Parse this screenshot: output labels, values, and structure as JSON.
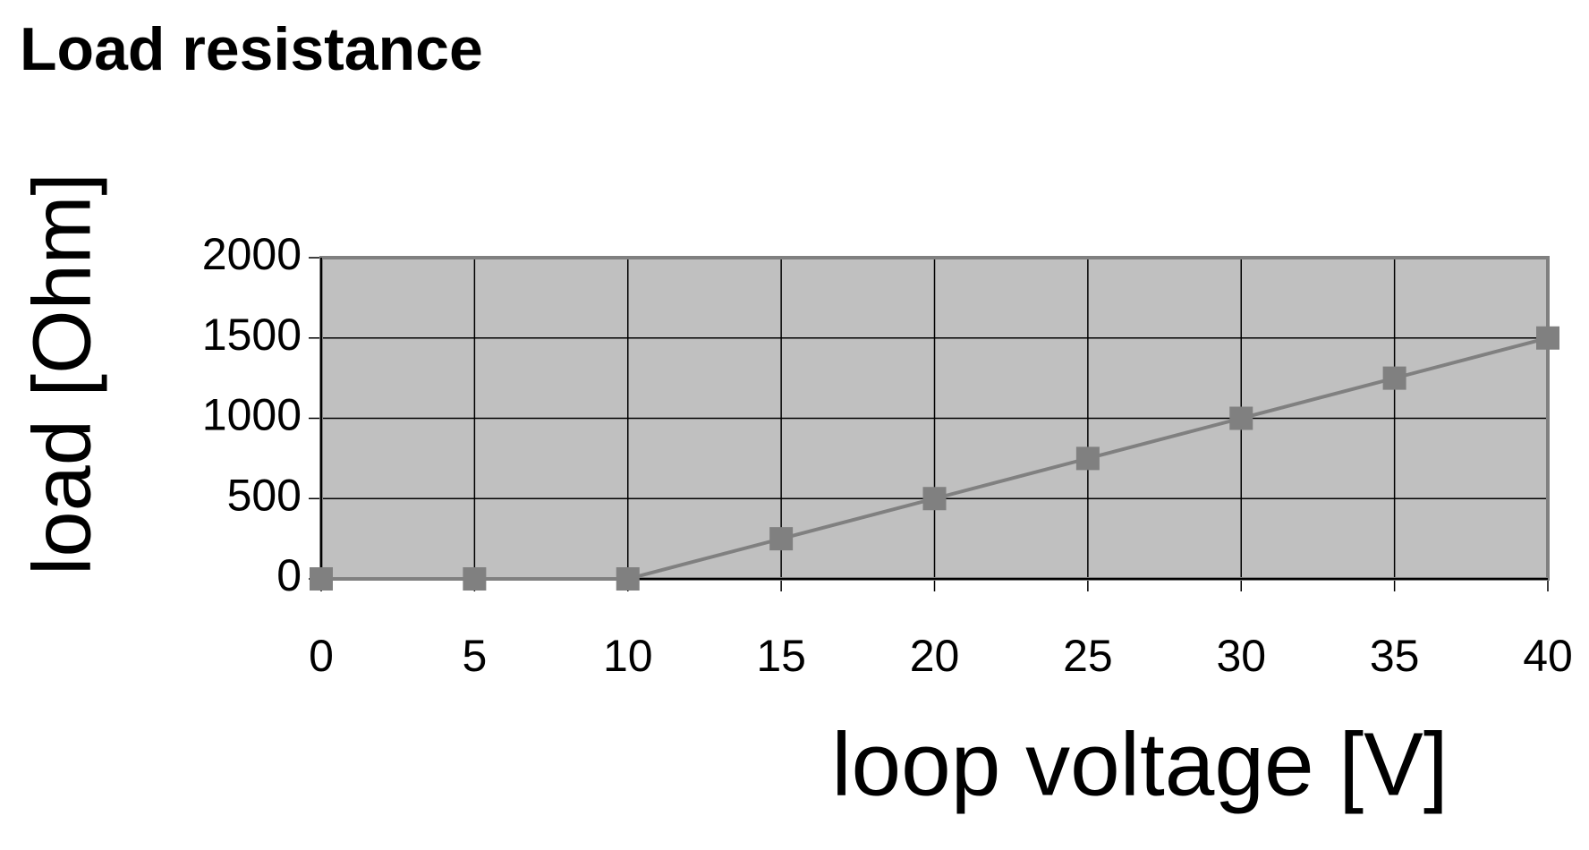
{
  "chart_data": {
    "type": "line",
    "title": "Load resistance",
    "x_label": "loop voltage [V]",
    "y_label": "load [Ohm]",
    "x": [
      0,
      5,
      10,
      15,
      20,
      25,
      30,
      35,
      40
    ],
    "series": [
      {
        "color": "#808080",
        "values": [
          0,
          0,
          0,
          250,
          500,
          750,
          1000,
          1250,
          1500
        ]
      }
    ],
    "xlim": [
      0,
      40
    ],
    "xticks": [
      0,
      5,
      10,
      15,
      20,
      25,
      30,
      35,
      40
    ],
    "ylim": [
      0,
      2000
    ],
    "yticks": [
      0,
      500,
      1000,
      1500,
      2000
    ],
    "grid": true,
    "plot_background": "#c0c0c0"
  }
}
